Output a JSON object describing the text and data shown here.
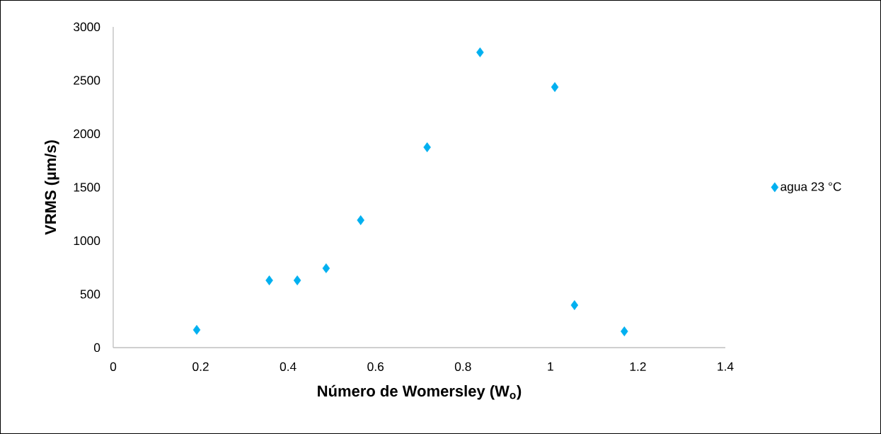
{
  "chart_data": {
    "type": "scatter",
    "xlabel": "Número de Womersley (W$_{o}$)",
    "ylabel": "VRMS (µm/s)",
    "series": [
      {
        "name": "agua 23 °C",
        "color": "#00b0f0",
        "x": [
          0.191,
          0.357,
          0.421,
          0.487,
          0.566,
          0.718,
          0.839,
          1.01,
          1.055,
          1.169
        ],
        "values": [
          166,
          629,
          629,
          742,
          1192,
          1874,
          2762,
          2437,
          397,
          152
        ]
      }
    ],
    "xlim": [
      0,
      1.4
    ],
    "xticks": [
      0,
      0.2,
      0.4,
      0.6,
      0.8,
      1,
      1.2,
      1.4
    ],
    "ylim": [
      0,
      3000
    ],
    "yticks": [
      0,
      500,
      1000,
      1500,
      2000,
      2500,
      3000
    ],
    "grid": false,
    "legend": "right",
    "marker": "diamond"
  }
}
